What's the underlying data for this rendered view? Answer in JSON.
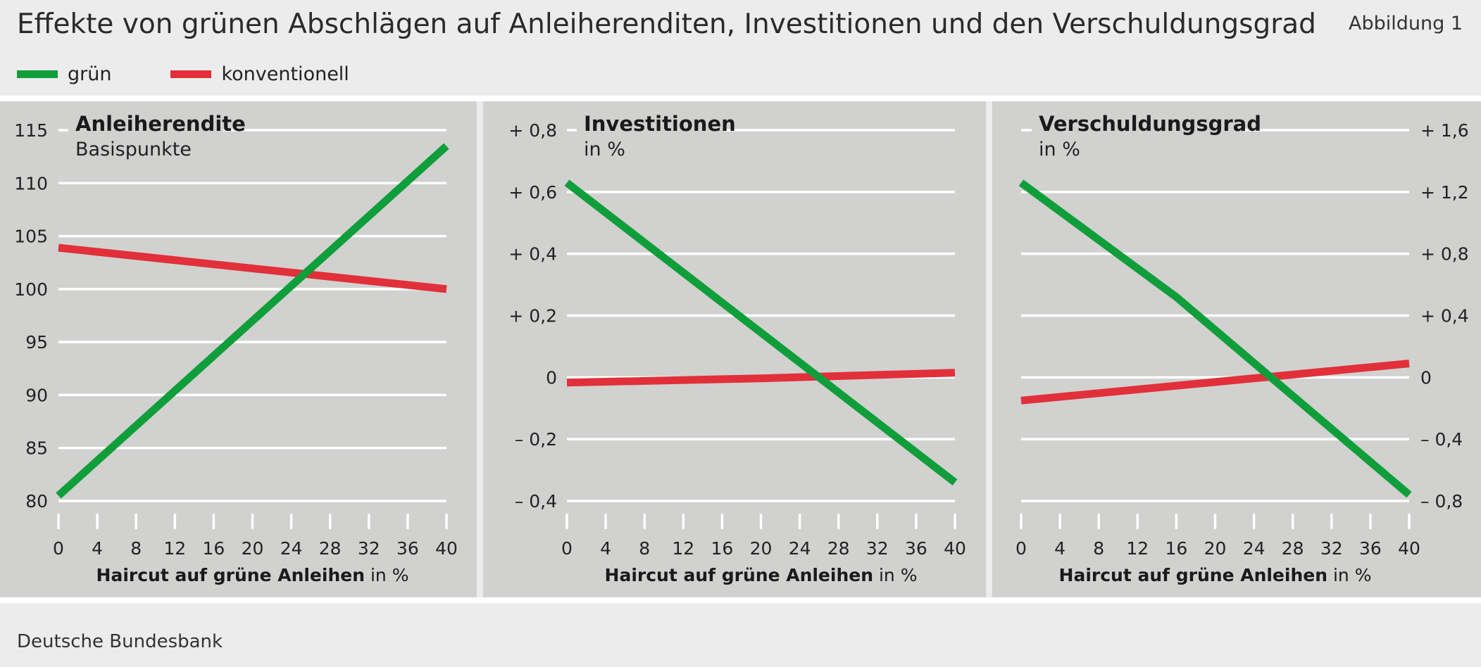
{
  "header": {
    "title": "Effekte von grünen Abschlägen auf Anleiherenditen, Investitionen und den Verschuldungsgrad",
    "figure_label": "Abbildung 1"
  },
  "legend": [
    {
      "label": "grün",
      "color": "#0f9e3a"
    },
    {
      "label": "konventionell",
      "color": "#e1303a"
    }
  ],
  "footer": {
    "source": "Deutsche Bundesbank"
  },
  "chart_data": [
    {
      "type": "line",
      "title": "Anleiherendite",
      "subtitle": "Basispunkte",
      "xlabel_bold": "Haircut auf grüne Anleihen",
      "xlabel_unit": " in %",
      "x_ticks": [
        0,
        4,
        8,
        12,
        16,
        20,
        24,
        28,
        32,
        36,
        40
      ],
      "xlim": [
        0,
        40
      ],
      "ylim": [
        80,
        115
      ],
      "y_ticks": [
        80,
        85,
        90,
        95,
        100,
        105,
        110,
        115
      ],
      "y_tick_labels": [
        "80",
        "85",
        "90",
        "95",
        "100",
        "105",
        "110",
        "115"
      ],
      "y_axis_side": "left",
      "series": [
        {
          "name": "grün",
          "color": "#0f9e3a",
          "x": [
            0,
            40
          ],
          "y": [
            80.5,
            113.5
          ]
        },
        {
          "name": "konventionell",
          "color": "#e1303a",
          "x": [
            0,
            40
          ],
          "y": [
            103.9,
            100.0
          ]
        }
      ]
    },
    {
      "type": "line",
      "title": "Investitionen",
      "subtitle": "in %",
      "xlabel_bold": "Haircut auf grüne Anleihen",
      "xlabel_unit": " in %",
      "x_ticks": [
        0,
        4,
        8,
        12,
        16,
        20,
        24,
        28,
        32,
        36,
        40
      ],
      "xlim": [
        0,
        40
      ],
      "ylim": [
        -0.4,
        0.8
      ],
      "y_ticks": [
        -0.4,
        -0.2,
        0,
        0.2,
        0.4,
        0.6,
        0.8
      ],
      "y_tick_labels": [
        "– 0,4",
        "– 0,2",
        "0",
        "+ 0,2",
        "+ 0,4",
        "+ 0,6",
        "+ 0,8"
      ],
      "y_axis_side": "left",
      "series": [
        {
          "name": "grün",
          "color": "#0f9e3a",
          "x": [
            0,
            40
          ],
          "y": [
            0.63,
            -0.34
          ]
        },
        {
          "name": "konventionell",
          "color": "#e1303a",
          "x": [
            0,
            20,
            40
          ],
          "y": [
            -0.017,
            -0.003,
            0.015
          ]
        }
      ]
    },
    {
      "type": "line",
      "title": "Verschuldungsgrad",
      "subtitle": "in %",
      "xlabel_bold": "Haircut auf grüne Anleihen",
      "xlabel_unit": " in %",
      "x_ticks": [
        0,
        4,
        8,
        12,
        16,
        20,
        24,
        28,
        32,
        36,
        40
      ],
      "xlim": [
        0,
        40
      ],
      "ylim": [
        -0.8,
        1.6
      ],
      "y_ticks": [
        -0.8,
        -0.4,
        0,
        0.4,
        0.8,
        1.2,
        1.6
      ],
      "y_tick_labels": [
        "– 0,8",
        "– 0,4",
        "0",
        "+ 0,4",
        "+ 0,8",
        "+ 1,2",
        "+ 1,6"
      ],
      "y_axis_side": "right",
      "series": [
        {
          "name": "grün",
          "color": "#0f9e3a",
          "x": [
            0,
            16,
            40
          ],
          "y": [
            1.26,
            0.52,
            -0.76
          ]
        },
        {
          "name": "konventionell",
          "color": "#e1303a",
          "x": [
            0,
            40
          ],
          "y": [
            -0.15,
            0.09
          ]
        }
      ]
    }
  ]
}
